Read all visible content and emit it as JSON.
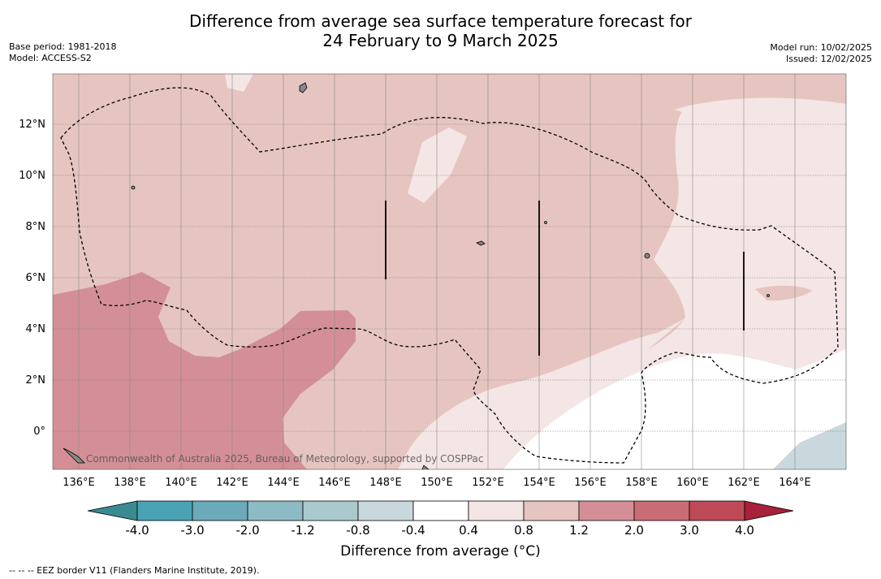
{
  "title": {
    "line1": "Difference from average sea surface temperature forecast for",
    "line2": "24 February to 9 March 2025"
  },
  "meta_left": {
    "base_period": "Base period: 1981-2018",
    "model": "Model: ACCESS-S2"
  },
  "meta_right": {
    "model_run": "Model run: 10/02/2025",
    "issued": "Issued: 12/02/2025"
  },
  "map": {
    "lat_labels": [
      "12°N",
      "10°N",
      "8°N",
      "6°N",
      "4°N",
      "2°N",
      "0°"
    ],
    "lon_labels": [
      "136°E",
      "138°E",
      "140°E",
      "142°E",
      "144°E",
      "146°E",
      "148°E",
      "150°E",
      "152°E",
      "154°E",
      "156°E",
      "158°E",
      "160°E",
      "162°E",
      "164°E"
    ],
    "credit": "Commonwealth of Australia 2025, Bureau of Meteorology, supported by COSPPac"
  },
  "colorbar": {
    "title": "Difference from average (°C)",
    "tick_labels": [
      "-4.0",
      "-3.0",
      "-2.0",
      "-1.2",
      "-0.8",
      "-0.4",
      "0.4",
      "0.8",
      "1.2",
      "2.0",
      "3.0",
      "4.0"
    ],
    "colors": [
      "#4aa3b3",
      "#6aaab9",
      "#8cbac5",
      "#aac9cc",
      "#c8d8dc",
      "#ffffff",
      "#f4e6e5",
      "#e6c5c1",
      "#d48f96",
      "#c96c73",
      "#be4a58"
    ],
    "under_color": "#3a8a92",
    "over_color": "#a8203a"
  },
  "legend": {
    "text": "--  --  -- EEZ border V11 (Flanders Marine Institute, 2019)."
  }
}
